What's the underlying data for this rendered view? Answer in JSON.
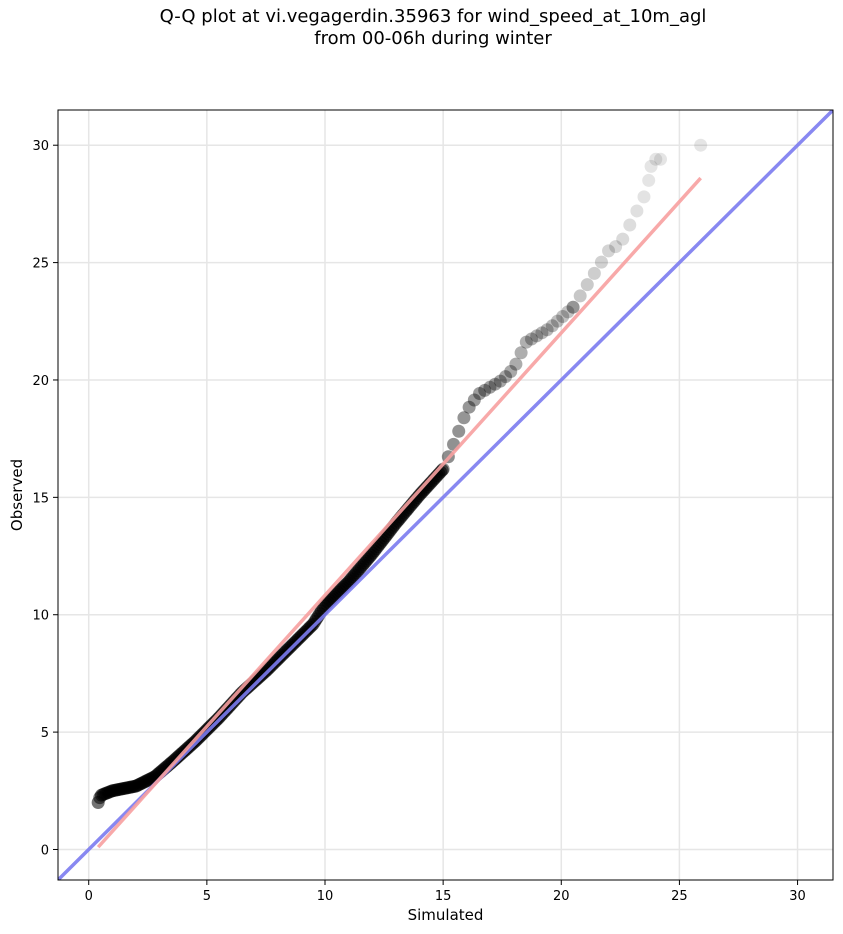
{
  "chart_data": {
    "type": "scatter",
    "title": [
      "Q-Q plot at vi.vegagerdin.35963 for wind_speed_at_10m_agl",
      "from 00-06h during winter"
    ],
    "xlabel": "Simulated",
    "ylabel": "Observed",
    "xlim": [
      -1.3,
      31.5
    ],
    "ylim": [
      -1.3,
      31.5
    ],
    "xticks": [
      0,
      5,
      10,
      15,
      20,
      25,
      30
    ],
    "yticks": [
      0,
      5,
      10,
      15,
      20,
      25,
      30
    ],
    "grid": true,
    "point_color": "#000000",
    "curve_knots": [
      [
        0.4,
        2.0
      ],
      [
        0.5,
        2.3
      ],
      [
        1.0,
        2.5
      ],
      [
        2.0,
        2.7
      ],
      [
        2.8,
        3.1
      ],
      [
        3.5,
        3.7
      ],
      [
        4.5,
        4.6
      ],
      [
        5.5,
        5.6
      ],
      [
        6.5,
        6.7
      ],
      [
        7.5,
        7.6
      ],
      [
        8.5,
        8.6
      ],
      [
        9.5,
        9.6
      ],
      [
        10.0,
        10.4
      ],
      [
        11.0,
        11.4
      ],
      [
        12.0,
        12.6
      ],
      [
        13.0,
        13.9
      ],
      [
        14.0,
        15.1
      ],
      [
        15.0,
        16.2
      ],
      [
        15.5,
        17.4
      ],
      [
        16.0,
        18.7
      ],
      [
        16.5,
        19.4
      ],
      [
        17.5,
        20.0
      ],
      [
        18.0,
        20.5
      ],
      [
        18.5,
        21.6
      ],
      [
        19.5,
        22.2
      ],
      [
        20.5,
        23.1
      ],
      [
        21.5,
        24.7
      ],
      [
        22.0,
        25.5
      ],
      [
        22.5,
        25.8
      ],
      [
        23.0,
        26.8
      ],
      [
        23.5,
        27.8
      ],
      [
        24.0,
        29.4
      ],
      [
        25.9,
        30.0
      ]
    ],
    "series": [
      {
        "name": "identity",
        "color": "#7b7bf0",
        "x": [
          -1.3,
          31.5
        ],
        "y": [
          -1.3,
          31.5
        ]
      },
      {
        "name": "fit",
        "color": "#f7a0a0",
        "x": [
          0.4,
          25.9
        ],
        "y": [
          0.1,
          28.6
        ]
      }
    ]
  }
}
